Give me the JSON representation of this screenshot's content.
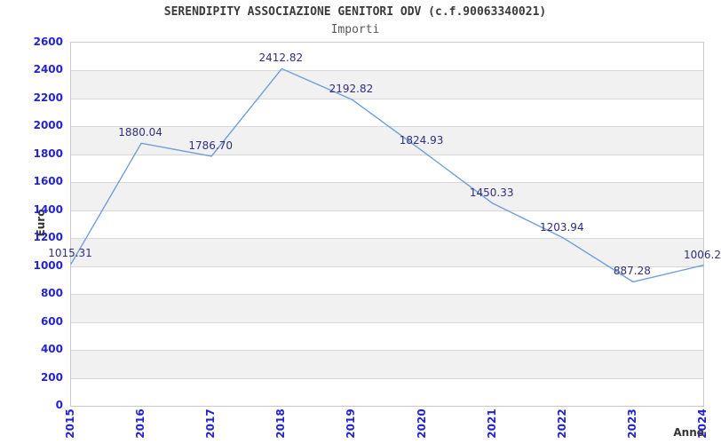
{
  "header": {
    "title": "SERENDIPITY ASSOCIAZIONE GENITORI ODV (c.f.90063340021)",
    "subtitle": "Importi"
  },
  "chart_data": {
    "type": "line",
    "title": "SERENDIPITY ASSOCIAZIONE GENITORI ODV (c.f.90063340021)",
    "subtitle": "Importi",
    "xlabel": "Anno",
    "ylabel": "Euro",
    "categories": [
      "2015",
      "2016",
      "2017",
      "2018",
      "2019",
      "2020",
      "2021",
      "2022",
      "2023",
      "2024"
    ],
    "series": [
      {
        "name": "Importi",
        "values": [
          1015.31,
          1880.04,
          1786.7,
          2412.82,
          2192.82,
          1824.93,
          1450.33,
          1203.94,
          887.28,
          1006.2
        ],
        "point_labels": [
          "1015.31",
          "1880.04",
          "1786.70",
          "2412.82",
          "2192.82",
          "1824.93",
          "1450.33",
          "1203.94",
          "887.28",
          "1006.2"
        ]
      }
    ],
    "ylim": [
      0,
      2600
    ],
    "ytick_step": 200,
    "grid": "horizontal-gridlines-with-alternating-bands",
    "legend_position": "none",
    "colors": {
      "line": "#6f9fd9",
      "tick_label": "#2424cf",
      "data_label": "#2f2f7f",
      "band_gray": "#f1f1f1",
      "gridline": "#d7d7d7",
      "plot_border": "#c9c9c9",
      "title": "#3b3b3b",
      "subtitle": "#585858",
      "axis_title": "#333333",
      "background": "#ffffff"
    }
  }
}
